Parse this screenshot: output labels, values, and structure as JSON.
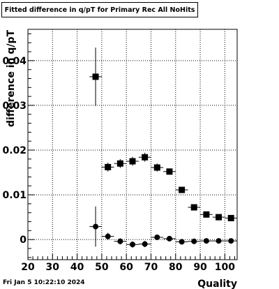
{
  "title": "Fitted difference in q/pT for Primary Rec All NoHits",
  "footer_date": "Fri Jan  5 10:22:10 2024",
  "chart_data": {
    "type": "scatter",
    "title": "Fitted difference in q/pT for Primary Rec All NoHits",
    "xlabel": "Quality",
    "ylabel": "difference in q/pT",
    "xlim": [
      20,
      105
    ],
    "ylim": [
      -0.0045,
      0.047
    ],
    "x_ticks": [
      20,
      30,
      40,
      50,
      60,
      70,
      80,
      90,
      100
    ],
    "y_ticks": [
      0,
      0.01,
      0.02,
      0.03,
      0.04
    ],
    "y_tick_labels": [
      "0",
      "0.01",
      "0.02",
      "0.03",
      "0.04"
    ],
    "grid": true,
    "series": [
      {
        "marker": "square",
        "x": [
          47.5,
          52.5,
          57.5,
          62.5,
          67.5,
          72.5,
          77.5,
          82.5,
          87.5,
          92.5,
          97.5,
          102.5
        ],
        "y": [
          0.0364,
          0.0162,
          0.017,
          0.0175,
          0.0184,
          0.0161,
          0.0152,
          0.0111,
          0.0072,
          0.0056,
          0.005,
          0.0048
        ],
        "yerr": [
          0.0065,
          0.001,
          0.001,
          0.001,
          0.001,
          0.0009,
          0.0006,
          0.0005,
          0.0004,
          0.0003,
          0.0003,
          0.0002
        ]
      },
      {
        "marker": "circle",
        "x": [
          47.5,
          52.5,
          57.5,
          62.5,
          67.5,
          72.5,
          77.5,
          82.5,
          87.5,
          92.5,
          97.5,
          102.5
        ],
        "y": [
          0.0029,
          0.0007,
          -0.0004,
          -0.0011,
          -0.001,
          0.0005,
          0.0002,
          -0.0005,
          -0.0004,
          -0.0003,
          -0.0003,
          -0.0003
        ],
        "yerr": [
          0.0045,
          0.0008,
          0.0007,
          0.0007,
          0.0007,
          0.0004,
          0.0003,
          0.0002,
          0.0002,
          0.0002,
          0.0001,
          0.0001
        ]
      }
    ]
  }
}
